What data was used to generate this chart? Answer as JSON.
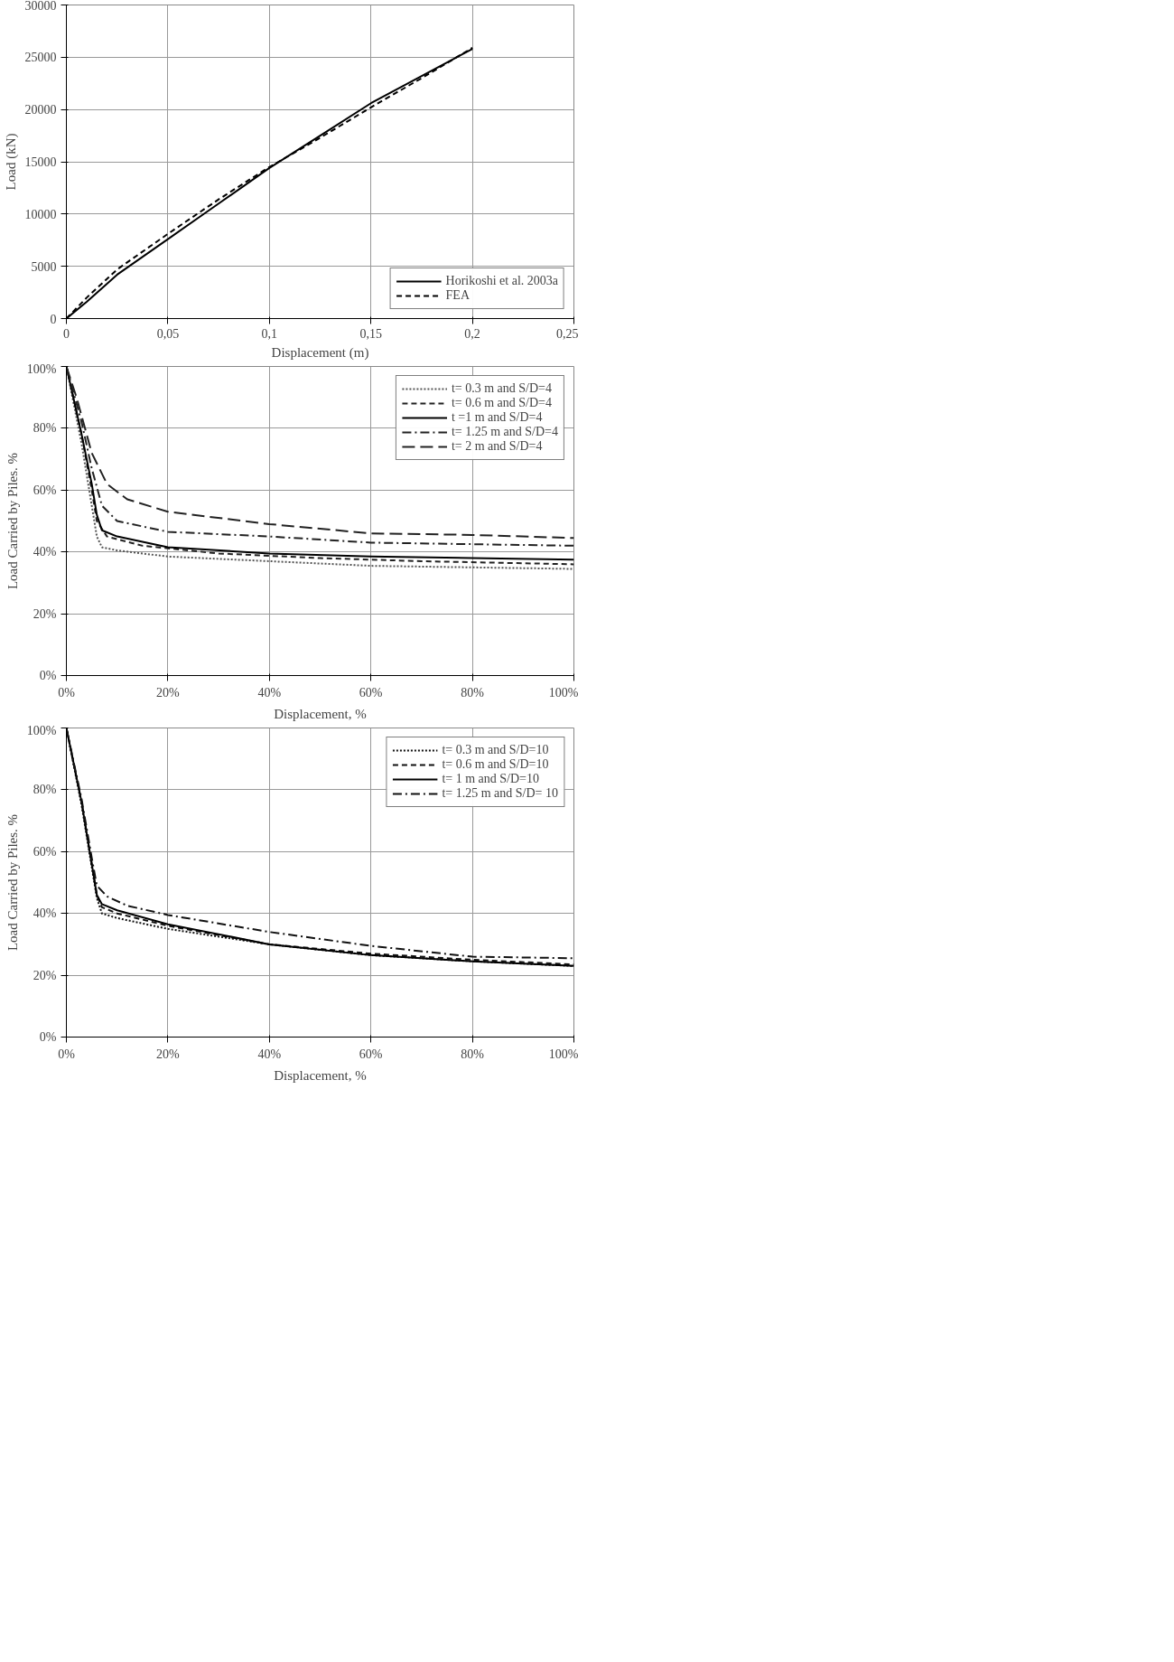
{
  "chart_data": [
    {
      "type": "line",
      "xlabel": "Displacement (m)",
      "ylabel": "Load (kN)",
      "xlim": [
        0,
        0.25
      ],
      "ylim": [
        0,
        30000
      ],
      "xticks": [
        0,
        {
          "value": 0.05,
          "label": "0,05"
        },
        {
          "value": 0.1,
          "label": "0,1"
        },
        {
          "value": 0.15,
          "label": "0,15"
        },
        {
          "value": 0.2,
          "label": "0,2"
        },
        {
          "value": 0.25,
          "label": "0,25"
        }
      ],
      "yticks": [
        0,
        5000,
        10000,
        15000,
        20000,
        25000,
        30000
      ],
      "grid": true,
      "legend": "bottom right",
      "series": [
        {
          "name": "Horikoshi et al. 2003a",
          "color": "#000000",
          "line_style": "solid",
          "x": [
            0,
            0.01,
            0.025,
            0.05,
            0.075,
            0.1,
            0.125,
            0.15,
            0.175,
            0.2
          ],
          "values": [
            0,
            1600,
            4200,
            7600,
            11000,
            14400,
            17500,
            20600,
            23200,
            25800
          ]
        },
        {
          "name": "FEA",
          "color": "#000000",
          "line_style": "dashed",
          "x": [
            0,
            0.01,
            0.025,
            0.05,
            0.075,
            0.1,
            0.125,
            0.15,
            0.175,
            0.2
          ],
          "values": [
            0,
            2000,
            4700,
            8100,
            11400,
            14500,
            17300,
            20200,
            23000,
            25900
          ]
        }
      ]
    },
    {
      "type": "line",
      "xlabel": "Displacement, %",
      "ylabel": "Load Carried by Piles. %",
      "xlim": [
        0,
        100
      ],
      "ylim": [
        0,
        100
      ],
      "xticks": [
        {
          "value": 0,
          "label": "0%"
        },
        {
          "value": 20,
          "label": "20%"
        },
        {
          "value": 40,
          "label": "40%"
        },
        {
          "value": 60,
          "label": "60%"
        },
        {
          "value": 80,
          "label": "80%"
        },
        {
          "value": 100,
          "label": "100%"
        }
      ],
      "yticks": [
        {
          "value": 0,
          "label": "0%"
        },
        {
          "value": 20,
          "label": "20%"
        },
        {
          "value": 40,
          "label": "40%"
        },
        {
          "value": 60,
          "label": "60%"
        },
        {
          "value": 80,
          "label": "80%"
        },
        {
          "value": 100,
          "label": "100%"
        }
      ],
      "grid": true,
      "legend": "top right",
      "series": [
        {
          "name": "t= 0.3 m and S/D=4",
          "color": "#555555",
          "line_style": "dotted",
          "x": [
            0,
            3,
            5,
            6,
            7,
            10,
            20,
            40,
            60,
            80,
            100
          ],
          "values": [
            100,
            75,
            55,
            45,
            41.5,
            40.5,
            38.5,
            37,
            35.5,
            35,
            34.5
          ]
        },
        {
          "name": "t= 0.6 m and S/D=4",
          "color": "#222222",
          "line_style": "dashed",
          "x": [
            0,
            3,
            5,
            6,
            8,
            15,
            30,
            50,
            70,
            100
          ],
          "values": [
            100,
            78,
            60,
            50,
            45,
            42,
            39.5,
            38,
            37,
            36
          ]
        },
        {
          "name": "t =1 m and S/D=4",
          "color": "#000000",
          "line_style": "solid",
          "x": [
            0,
            3,
            5,
            6,
            7,
            10,
            20,
            40,
            60,
            80,
            100
          ],
          "values": [
            100,
            78,
            62,
            52,
            47,
            45,
            41.5,
            39.5,
            38.5,
            38,
            37.5
          ]
        },
        {
          "name": "t= 1.25 m and S/D=4",
          "color": "#222222",
          "line_style": "dashdot",
          "x": [
            0,
            3,
            5,
            7,
            10,
            20,
            40,
            60,
            80,
            100
          ],
          "values": [
            100,
            82,
            67,
            55,
            50,
            46.5,
            45,
            43,
            42.5,
            42
          ]
        },
        {
          "name": "t= 2 m and S/D=4",
          "color": "#222222",
          "line_style": "longdash",
          "x": [
            0,
            2,
            5,
            8,
            12,
            20,
            40,
            60,
            80,
            100
          ],
          "values": [
            100,
            90,
            72,
            62,
            57,
            53,
            49,
            46,
            45.5,
            44.5
          ]
        }
      ]
    },
    {
      "type": "line",
      "xlabel": "Displacement, %",
      "ylabel": "Load Carried by Piles. %",
      "xlim": [
        0,
        100
      ],
      "ylim": [
        0,
        100
      ],
      "xticks": [
        {
          "value": 0,
          "label": "0%"
        },
        {
          "value": 20,
          "label": "20%"
        },
        {
          "value": 40,
          "label": "40%"
        },
        {
          "value": 60,
          "label": "60%"
        },
        {
          "value": 80,
          "label": "80%"
        },
        {
          "value": 100,
          "label": "100%"
        }
      ],
      "yticks": [
        {
          "value": 0,
          "label": "0%"
        },
        {
          "value": 20,
          "label": "20%"
        },
        {
          "value": 40,
          "label": "40%"
        },
        {
          "value": 60,
          "label": "60%"
        },
        {
          "value": 80,
          "label": "80%"
        },
        {
          "value": 100,
          "label": "100%"
        }
      ],
      "grid": true,
      "legend": "top right",
      "series": [
        {
          "name": "t= 0.3 m and S/D=10",
          "color": "#111111",
          "line_style": "dotted",
          "x": [
            0,
            3,
            5,
            6,
            7,
            10,
            20,
            40,
            60,
            80,
            100
          ],
          "values": [
            100,
            75,
            55,
            45,
            40,
            38.5,
            35,
            30,
            26.5,
            24.5,
            23
          ]
        },
        {
          "name": "t= 0.6 m and S/D=10",
          "color": "#111111",
          "line_style": "dashed",
          "x": [
            0,
            3,
            5,
            6,
            7,
            10,
            20,
            40,
            60,
            80,
            100
          ],
          "values": [
            100,
            76,
            56,
            46,
            42,
            40,
            36,
            30,
            27,
            25,
            23.5
          ]
        },
        {
          "name": "t= 1 m and S/D=10",
          "color": "#000000",
          "line_style": "solid",
          "x": [
            0,
            3,
            5,
            6,
            7,
            10,
            20,
            40,
            60,
            80,
            100
          ],
          "values": [
            100,
            76,
            56,
            46,
            43,
            41,
            36.5,
            30,
            26.5,
            24.5,
            23
          ]
        },
        {
          "name": "t= 1.25 m and S/D= 10",
          "color": "#111111",
          "line_style": "dashdot",
          "x": [
            0,
            3,
            5,
            6,
            8,
            12,
            20,
            40,
            60,
            80,
            100
          ],
          "values": [
            100,
            77,
            58,
            49,
            45.5,
            42.5,
            39.5,
            34,
            29.5,
            26,
            25.5
          ]
        }
      ]
    }
  ]
}
